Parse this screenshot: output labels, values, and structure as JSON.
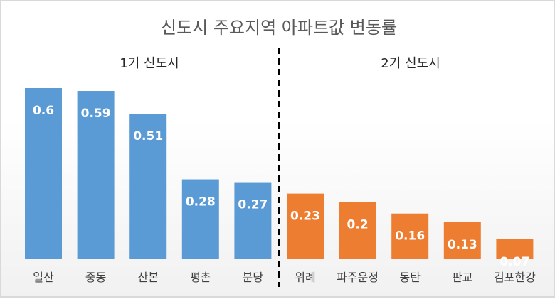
{
  "chart_data": {
    "type": "bar",
    "title": "신도시 주요지역 아파트값 변동률",
    "categories": [
      "일산",
      "중동",
      "산본",
      "평촌",
      "분당",
      "위례",
      "파주운정",
      "동탄",
      "판교",
      "김포한강"
    ],
    "values": [
      0.6,
      0.59,
      0.51,
      0.28,
      0.27,
      0.23,
      0.2,
      0.16,
      0.13,
      0.07
    ],
    "groups": [
      {
        "label": "1기 신도시",
        "categories": [
          "일산",
          "중동",
          "산본",
          "평촌",
          "분당"
        ],
        "color": "#5B9BD5"
      },
      {
        "label": "2기 신도시",
        "categories": [
          "위례",
          "파주운정",
          "동탄",
          "판교",
          "김포한강"
        ],
        "color": "#ED7D31"
      }
    ],
    "data_labels": true,
    "ylim": [
      0,
      0.6
    ],
    "grid": false,
    "legend": "none",
    "separator": "dashed vertical line between groups"
  }
}
